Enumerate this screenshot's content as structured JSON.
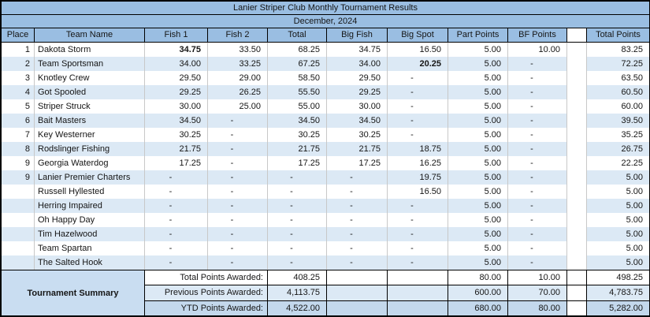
{
  "title": "Lanier Striper Club Monthly Tournament Results",
  "subtitle": "December, 2024",
  "colors": {
    "header_blue": "#9ABEE2",
    "band_blue": "#DCE9F5",
    "summary_label_blue": "#C9DDF1",
    "summary_deep_blue": "#C3D8EC",
    "border_black": "#000000",
    "grid_gray": "#C8C8C8"
  },
  "columns": [
    "Place",
    "Team Name",
    "Fish 1",
    "Fish 2",
    "Total",
    "Big Fish",
    "Big Spot",
    "Part Points",
    "BF Points",
    "",
    "Total Points"
  ],
  "rows": [
    {
      "place": "1",
      "team": "Dakota Storm",
      "fish1": "34.75",
      "fish2": "33.50",
      "total": "68.25",
      "big_fish": "34.75",
      "big_spot": "16.50",
      "part_points": "5.00",
      "bf_points": "10.00",
      "total_points": "83.25",
      "bold_cols": [
        "fish1"
      ]
    },
    {
      "place": "2",
      "team": "Team Sportsman",
      "fish1": "34.00",
      "fish2": "33.25",
      "total": "67.25",
      "big_fish": "34.00",
      "big_spot": "20.25",
      "part_points": "5.00",
      "bf_points": "-",
      "total_points": "72.25",
      "bold_cols": [
        "big_spot"
      ]
    },
    {
      "place": "3",
      "team": "Knotley Crew",
      "fish1": "29.50",
      "fish2": "29.00",
      "total": "58.50",
      "big_fish": "29.50",
      "big_spot": "-",
      "part_points": "5.00",
      "bf_points": "-",
      "total_points": "63.50",
      "bold_cols": []
    },
    {
      "place": "4",
      "team": "Got Spooled",
      "fish1": "29.25",
      "fish2": "26.25",
      "total": "55.50",
      "big_fish": "29.25",
      "big_spot": "-",
      "part_points": "5.00",
      "bf_points": "-",
      "total_points": "60.50",
      "bold_cols": []
    },
    {
      "place": "5",
      "team": "Striper Struck",
      "fish1": "30.00",
      "fish2": "25.00",
      "total": "55.00",
      "big_fish": "30.00",
      "big_spot": "-",
      "part_points": "5.00",
      "bf_points": "-",
      "total_points": "60.00",
      "bold_cols": []
    },
    {
      "place": "6",
      "team": "Bait Masters",
      "fish1": "34.50",
      "fish2": "-",
      "total": "34.50",
      "big_fish": "34.50",
      "big_spot": "-",
      "part_points": "5.00",
      "bf_points": "-",
      "total_points": "39.50",
      "bold_cols": []
    },
    {
      "place": "7",
      "team": "Key Westerner",
      "fish1": "30.25",
      "fish2": "-",
      "total": "30.25",
      "big_fish": "30.25",
      "big_spot": "-",
      "part_points": "5.00",
      "bf_points": "-",
      "total_points": "35.25",
      "bold_cols": []
    },
    {
      "place": "8",
      "team": "Rodslinger Fishing",
      "fish1": "21.75",
      "fish2": "-",
      "total": "21.75",
      "big_fish": "21.75",
      "big_spot": "18.75",
      "part_points": "5.00",
      "bf_points": "-",
      "total_points": "26.75",
      "bold_cols": []
    },
    {
      "place": "9",
      "team": "Georgia Waterdog",
      "fish1": "17.25",
      "fish2": "-",
      "total": "17.25",
      "big_fish": "17.25",
      "big_spot": "16.25",
      "part_points": "5.00",
      "bf_points": "-",
      "total_points": "22.25",
      "bold_cols": []
    },
    {
      "place": "9",
      "team": "Lanier Premier Charters",
      "fish1": "-",
      "fish2": "-",
      "total": "-",
      "big_fish": "-",
      "big_spot": "19.75",
      "part_points": "5.00",
      "bf_points": "-",
      "total_points": "5.00",
      "bold_cols": []
    },
    {
      "place": "",
      "team": "Russell Hyllested",
      "fish1": "-",
      "fish2": "-",
      "total": "-",
      "big_fish": "-",
      "big_spot": "16.50",
      "part_points": "5.00",
      "bf_points": "-",
      "total_points": "5.00",
      "bold_cols": []
    },
    {
      "place": "",
      "team": "Herring Impaired",
      "fish1": "-",
      "fish2": "-",
      "total": "-",
      "big_fish": "-",
      "big_spot": "-",
      "part_points": "5.00",
      "bf_points": "-",
      "total_points": "5.00",
      "bold_cols": []
    },
    {
      "place": "",
      "team": "Oh Happy Day",
      "fish1": "-",
      "fish2": "-",
      "total": "-",
      "big_fish": "-",
      "big_spot": "-",
      "part_points": "5.00",
      "bf_points": "-",
      "total_points": "5.00",
      "bold_cols": []
    },
    {
      "place": "",
      "team": "Tim Hazelwood",
      "fish1": "-",
      "fish2": "-",
      "total": "-",
      "big_fish": "-",
      "big_spot": "-",
      "part_points": "5.00",
      "bf_points": "-",
      "total_points": "5.00",
      "bold_cols": []
    },
    {
      "place": "",
      "team": "Team Spartan",
      "fish1": "-",
      "fish2": "-",
      "total": "-",
      "big_fish": "-",
      "big_spot": "-",
      "part_points": "5.00",
      "bf_points": "-",
      "total_points": "5.00",
      "bold_cols": []
    },
    {
      "place": "",
      "team": "The Salted Hook",
      "fish1": "-",
      "fish2": "-",
      "total": "-",
      "big_fish": "-",
      "big_spot": "-",
      "part_points": "5.00",
      "bf_points": "-",
      "total_points": "5.00",
      "bold_cols": []
    }
  ],
  "summary": {
    "title": "Tournament Summary",
    "rows": [
      {
        "label": "Total Points Awarded:",
        "total": "408.25",
        "part_points": "80.00",
        "bf_points": "10.00",
        "total_points": "498.25"
      },
      {
        "label": "Previous Points Awarded:",
        "total": "4,113.75",
        "part_points": "600.00",
        "bf_points": "70.00",
        "total_points": "4,783.75"
      },
      {
        "label": "YTD Points Awarded:",
        "total": "4,522.00",
        "part_points": "680.00",
        "bf_points": "80.00",
        "total_points": "5,282.00"
      }
    ]
  }
}
